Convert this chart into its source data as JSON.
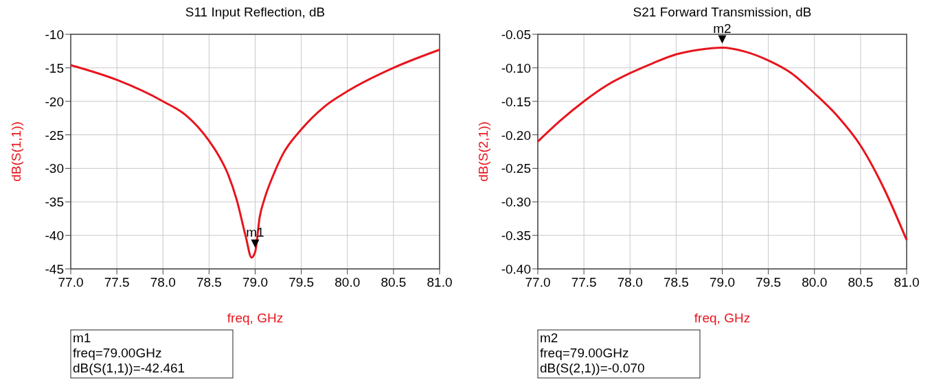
{
  "chart_data": [
    {
      "type": "line",
      "title": "S11 Input Reflection, dB",
      "xlabel": "freq, GHz",
      "ylabel": "dB(S(1,1))",
      "series": [
        {
          "color": "#e8141c",
          "x": [
            77.0,
            77.5,
            78.0,
            78.25,
            78.5,
            78.6,
            78.7,
            78.8,
            78.9,
            78.96,
            79.0,
            79.05,
            79.1,
            79.2,
            79.3,
            79.5,
            79.75,
            80.0,
            80.5,
            81.0
          ],
          "values": [
            -14.6,
            -16.8,
            -20.0,
            -22.1,
            -25.9,
            -28.0,
            -30.7,
            -34.7,
            -40.3,
            -43.3,
            -42.461,
            -37.2,
            -34.6,
            -30.9,
            -27.9,
            -24.2,
            -20.8,
            -18.5,
            -15.0,
            -12.3
          ]
        }
      ],
      "xlim": [
        77,
        81
      ],
      "ylim": [
        -45,
        -10
      ],
      "xticks": [
        {
          "value": 77,
          "label": "77.0"
        },
        77.5,
        {
          "value": 78,
          "label": "78.0"
        },
        78.5,
        {
          "value": 79,
          "label": "79.0"
        },
        79.5,
        {
          "value": 80,
          "label": "80.0"
        },
        80.5,
        {
          "value": 81,
          "label": "81.0"
        }
      ],
      "yticks": [
        -45,
        -40,
        -35,
        -30,
        -25,
        -20,
        -15,
        -10
      ],
      "grid": true,
      "line_style": "solid",
      "annotations": [
        {
          "text": "m1",
          "x": 79.0,
          "y": -42.461
        },
        "m1\nfreq=79.00GHz\ndB(S(1,1))=-42.461"
      ]
    },
    {
      "type": "line",
      "title": "S21 Forward Transmission, dB",
      "xlabel": "freq, GHz",
      "ylabel": "dB(S(2,1))",
      "series": [
        {
          "color": "#e8141c",
          "x": [
            77.0,
            77.25,
            77.5,
            77.75,
            78.0,
            78.25,
            78.5,
            78.75,
            79.0,
            79.25,
            79.5,
            79.75,
            80.0,
            80.25,
            80.5,
            80.75,
            81.0
          ],
          "values": [
            -0.21,
            -0.178,
            -0.15,
            -0.126,
            -0.108,
            -0.093,
            -0.08,
            -0.073,
            -0.07,
            -0.076,
            -0.089,
            -0.108,
            -0.138,
            -0.172,
            -0.216,
            -0.279,
            -0.357
          ]
        }
      ],
      "xlim": [
        77,
        81
      ],
      "ylim": [
        -0.4,
        -0.05
      ],
      "xticks": [
        {
          "value": 77,
          "label": "77.0"
        },
        77.5,
        {
          "value": 78,
          "label": "78.0"
        },
        78.5,
        {
          "value": 79,
          "label": "79.0"
        },
        79.5,
        {
          "value": 80,
          "label": "80.0"
        },
        80.5,
        {
          "value": 81,
          "label": "81.0"
        }
      ],
      "yticks": [
        {
          "value": -0.4,
          "label": "-0.40"
        },
        -0.35,
        {
          "value": -0.3,
          "label": "-0.30"
        },
        -0.25,
        {
          "value": -0.2,
          "label": "-0.20"
        },
        -0.15,
        {
          "value": -0.1,
          "label": "-0.10"
        },
        -0.05
      ],
      "grid": true,
      "line_style": "solid",
      "annotations": [
        {
          "text": "m2",
          "x": 79.0,
          "y": -0.07
        },
        "m2\nfreq=79.00GHz\ndB(S(2,1))=-0.070"
      ]
    }
  ]
}
